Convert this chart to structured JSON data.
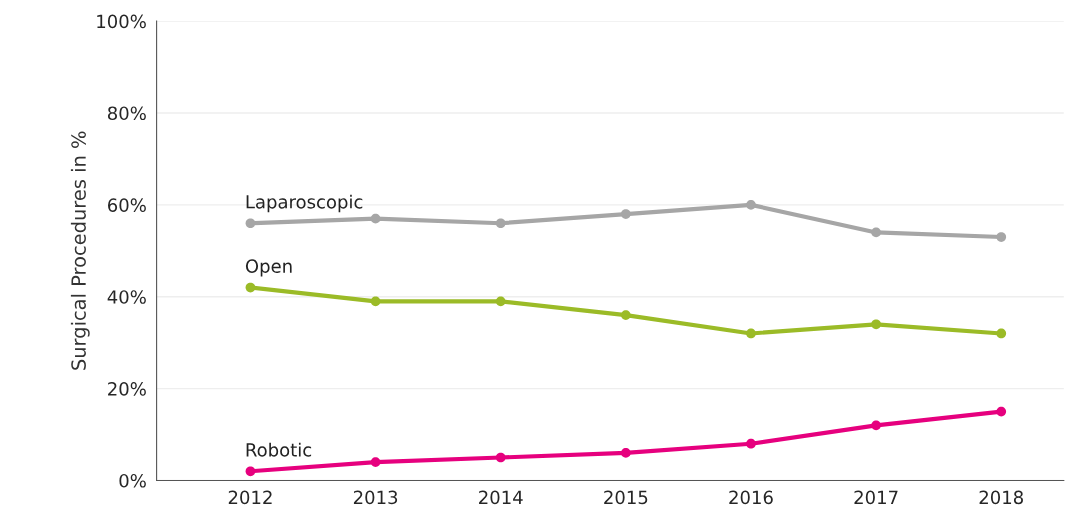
{
  "chart_data": {
    "type": "line",
    "ylabel": "Surgical Procedures in %",
    "categories": [
      "2012",
      "2013",
      "2014",
      "2015",
      "2016",
      "2017",
      "2018"
    ],
    "series": [
      {
        "name": "Laparoscopic",
        "color": "#a6a6a6",
        "values": [
          56,
          57,
          56,
          58,
          60,
          54,
          53
        ]
      },
      {
        "name": "Open",
        "color": "#9bbb27",
        "values": [
          42,
          39,
          39,
          36,
          32,
          34,
          32
        ]
      },
      {
        "name": "Robotic",
        "color": "#e6007e",
        "values": [
          2,
          4,
          5,
          6,
          8,
          12,
          15
        ]
      }
    ],
    "ylim": [
      0,
      100
    ],
    "yticks": [
      {
        "value": 0,
        "label": "0%"
      },
      {
        "value": 20,
        "label": "20%"
      },
      {
        "value": 40,
        "label": "40%"
      },
      {
        "value": 60,
        "label": "60%"
      },
      {
        "value": 80,
        "label": "80%"
      },
      {
        "value": 100,
        "label": "100%"
      }
    ],
    "grid": "y",
    "marker": "circle",
    "line_style": "solid",
    "legend": false
  }
}
